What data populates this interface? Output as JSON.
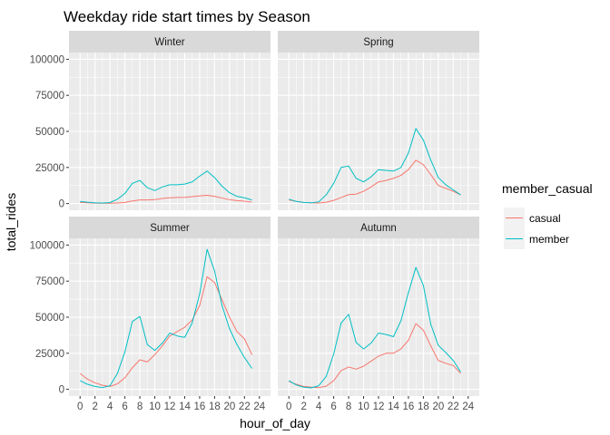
{
  "chart_data": {
    "type": "line",
    "title": "Weekday ride start times by Season",
    "xlabel": "hour_of_day",
    "ylabel": "total_rides",
    "xlim": [
      0,
      24
    ],
    "ylim": [
      0,
      100000
    ],
    "x_ticks": [
      "0",
      "2",
      "4",
      "6",
      "8",
      "10",
      "12",
      "14",
      "16",
      "18",
      "20",
      "22",
      "24"
    ],
    "y_ticks": [
      "0",
      "25000",
      "50000",
      "75000",
      "100000"
    ],
    "grid": true,
    "legend": {
      "title": "member_casual",
      "position": "right",
      "entries": [
        "casual",
        "member"
      ]
    },
    "colors": {
      "casual": "#F8766D",
      "member": "#00BFC4"
    },
    "x": [
      0,
      1,
      2,
      3,
      4,
      5,
      6,
      7,
      8,
      9,
      10,
      11,
      12,
      13,
      14,
      15,
      16,
      17,
      18,
      19,
      20,
      21,
      22,
      23
    ],
    "facets": [
      {
        "name": "Winter",
        "series": [
          {
            "name": "casual",
            "values": [
              800,
              500,
              300,
              200,
              200,
              400,
              800,
              1800,
              2500,
              2500,
              2700,
              3500,
              4000,
              4200,
              4300,
              4800,
              5300,
              5700,
              5000,
              3800,
              2700,
              2000,
              1600,
              1000
            ]
          },
          {
            "name": "member",
            "values": [
              1500,
              900,
              500,
              400,
              700,
              3000,
              7000,
              14000,
              16000,
              11000,
              9000,
              11500,
              13000,
              13000,
              13500,
              15000,
              19000,
              22500,
              18000,
              12000,
              7500,
              5000,
              4000,
              2500
            ]
          }
        ]
      },
      {
        "name": "Spring",
        "series": [
          {
            "name": "casual",
            "values": [
              2500,
              1500,
              800,
              500,
              400,
              900,
              2200,
              4200,
              6200,
              6500,
              8500,
              11500,
              15000,
              16000,
              17500,
              19500,
              23500,
              30000,
              27000,
              20000,
              12500,
              10500,
              8500,
              6000
            ]
          },
          {
            "name": "member",
            "values": [
              3000,
              1500,
              800,
              500,
              1200,
              6000,
              14000,
              25000,
              26000,
              17500,
              15000,
              18500,
              23500,
              23000,
              22500,
              25000,
              35000,
              52000,
              44000,
              30000,
              18000,
              13000,
              9500,
              6000
            ]
          }
        ]
      },
      {
        "name": "Summer",
        "series": [
          {
            "name": "casual",
            "values": [
              11000,
              7000,
              4500,
              2800,
              2000,
              3800,
              8000,
              15000,
              20500,
              19000,
              24000,
              30000,
              37000,
              40000,
              43000,
              48000,
              58000,
              78000,
              74000,
              62000,
              50000,
              40000,
              35000,
              24000
            ]
          },
          {
            "name": "member",
            "values": [
              6000,
              3500,
              2000,
              1200,
              2500,
              11000,
              26000,
              47000,
              50500,
              31000,
              27000,
              32000,
              39000,
              37000,
              36000,
              46000,
              66000,
              97000,
              82000,
              58000,
              42000,
              31000,
              22000,
              14500
            ]
          }
        ]
      },
      {
        "name": "Autumn",
        "series": [
          {
            "name": "casual",
            "values": [
              5500,
              3500,
              2000,
              1500,
              1200,
              2200,
              6000,
              13000,
              15500,
              14000,
              16000,
              19500,
              23000,
              25000,
              25000,
              28000,
              34000,
              45500,
              41000,
              30000,
              20000,
              18000,
              16500,
              11000
            ]
          },
          {
            "name": "member",
            "values": [
              6000,
              3000,
              1500,
              1000,
              2500,
              9000,
              24500,
              46000,
              52000,
              32500,
              28000,
              32000,
              39000,
              38000,
              36500,
              47500,
              67000,
              84500,
              72000,
              45000,
              30500,
              25500,
              20000,
              12000
            ]
          }
        ]
      }
    ]
  }
}
